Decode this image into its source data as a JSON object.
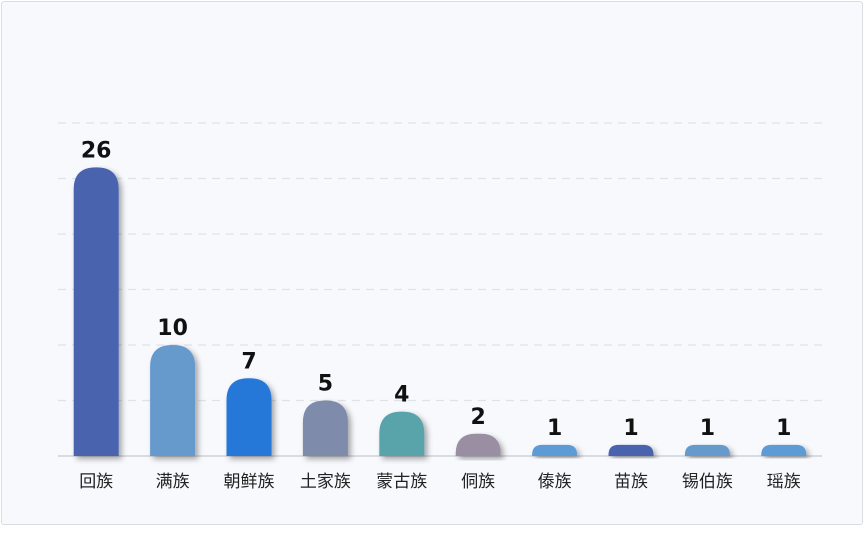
{
  "chart_data": {
    "type": "bar",
    "title": "",
    "xlabel": "",
    "ylabel": "",
    "ylim": [
      0,
      30
    ],
    "grid": true,
    "categories": [
      "回族",
      "满族",
      "朝鲜族",
      "土家族",
      "蒙古族",
      "侗族",
      "傣族",
      "苗族",
      "锡伯族",
      "瑶族"
    ],
    "values": [
      26,
      10,
      7,
      5,
      4,
      2,
      1,
      1,
      1,
      1
    ],
    "colors": [
      "#4a64ae",
      "#6699cc",
      "#2878d8",
      "#7f8bab",
      "#58a4aa",
      "#9a8fa2",
      "#5b9bd5",
      "#4a64ae",
      "#6699cc",
      "#5b9bd5"
    ]
  }
}
